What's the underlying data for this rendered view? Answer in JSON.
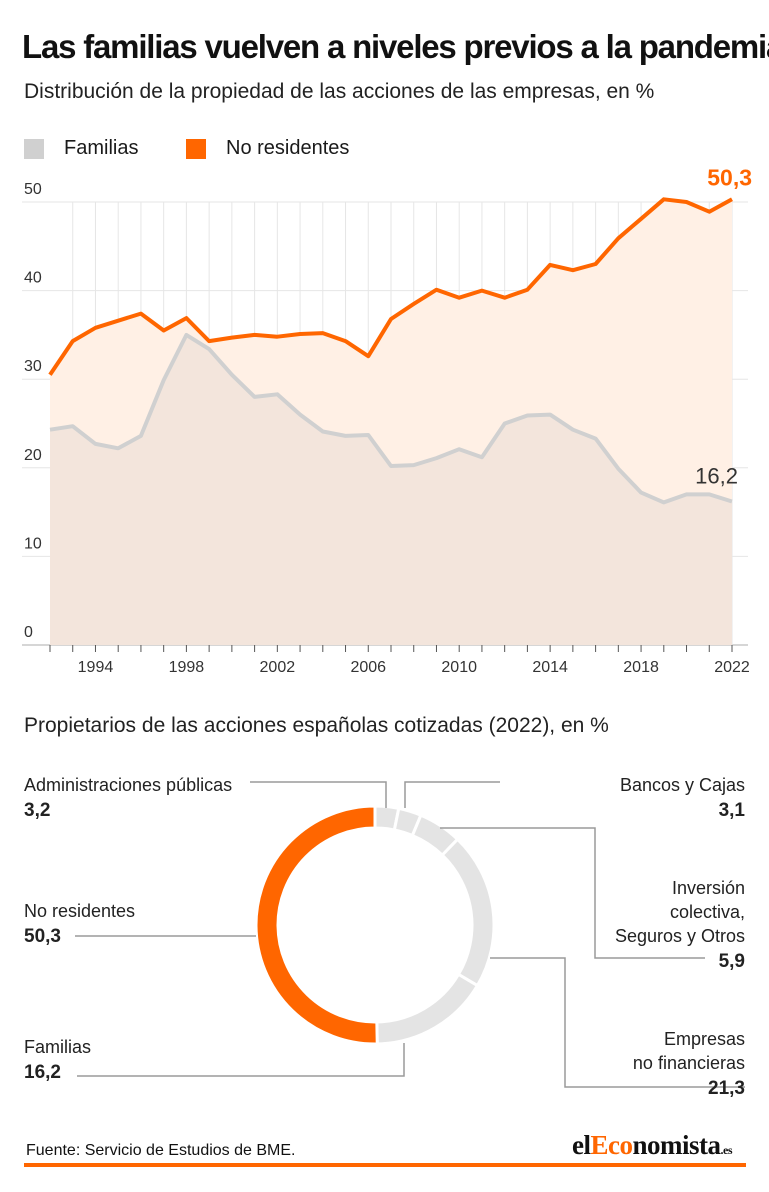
{
  "header": {
    "title": "Las familias vuelven a niveles previos a la pandemia",
    "subtitle": "Distribución de la propiedad de las acciones de las empresas, en %"
  },
  "legend": {
    "familias": "Familias",
    "no_residentes": "No residentes"
  },
  "colors": {
    "familias_line": "#d0d0d0",
    "familias_fill": "#f3e5dc",
    "no_residentes_line": "#ff6600",
    "no_residentes_fill": "#fff0e5",
    "grid": "#e6e6e6",
    "donut_grey": "#e4e4e4",
    "leader": "#9a9a9a"
  },
  "chart_data": [
    {
      "type": "area",
      "x": [
        1992,
        1993,
        1994,
        1995,
        1996,
        1997,
        1998,
        1999,
        2000,
        2001,
        2002,
        2003,
        2004,
        2005,
        2006,
        2007,
        2008,
        2009,
        2010,
        2011,
        2012,
        2013,
        2014,
        2015,
        2016,
        2017,
        2018,
        2019,
        2020,
        2021,
        2022
      ],
      "series": [
        {
          "name": "Familias",
          "values": [
            24.3,
            24.7,
            22.7,
            22.2,
            23.6,
            29.9,
            35.0,
            33.4,
            30.5,
            28.0,
            28.3,
            26.0,
            24.1,
            23.6,
            23.7,
            20.2,
            20.3,
            21.1,
            22.1,
            21.2,
            25.0,
            25.9,
            26.0,
            24.3,
            23.3,
            19.9,
            17.2,
            16.1,
            17.0,
            17.0,
            16.2
          ]
        },
        {
          "name": "No residentes",
          "values": [
            30.5,
            34.3,
            35.8,
            36.6,
            37.4,
            35.5,
            36.9,
            34.3,
            34.7,
            35.0,
            34.8,
            35.1,
            35.2,
            34.3,
            32.6,
            36.8,
            38.5,
            40.1,
            39.2,
            40.0,
            39.2,
            40.1,
            42.9,
            42.3,
            43.0,
            45.9,
            48.1,
            50.3,
            50.0,
            48.9,
            50.3
          ]
        }
      ],
      "xticks": [
        "1994",
        "1998",
        "2002",
        "2006",
        "2010",
        "2014",
        "2018",
        "2022"
      ],
      "yticks": [
        "0",
        "10",
        "20",
        "30",
        "40",
        "50"
      ],
      "ylim": [
        0,
        50
      ],
      "annotations": {
        "familias_last": "16,2",
        "no_residentes_last": "50,3"
      },
      "grid": true
    },
    {
      "type": "pie",
      "title": "Propietarios de las acciones españolas cotizadas (2022), en %",
      "slices": [
        {
          "label": "Administraciones públicas",
          "value_label": "3,2",
          "value": 3.2
        },
        {
          "label": "Bancos y Cajas",
          "value_label": "3,1",
          "value": 3.1
        },
        {
          "label": "Inversión colectiva, Seguros y Otros",
          "label_lines": [
            "Inversión",
            "colectiva,",
            "Seguros y Otros"
          ],
          "value_label": "5,9",
          "value": 5.9
        },
        {
          "label": "Empresas no financieras",
          "label_lines": [
            "Empresas",
            "no financieras"
          ],
          "value_label": "21,3",
          "value": 21.3
        },
        {
          "label": "Familias",
          "value_label": "16,2",
          "value": 16.2
        },
        {
          "label": "No residentes",
          "value_label": "50,3",
          "value": 50.3
        }
      ]
    }
  ],
  "footer": {
    "source": "Fuente: Servicio de Estudios de BME.",
    "brand_prefix": "el",
    "brand_accent": "Eco",
    "brand_suffix": "nomista",
    "brand_tld": ".es"
  }
}
